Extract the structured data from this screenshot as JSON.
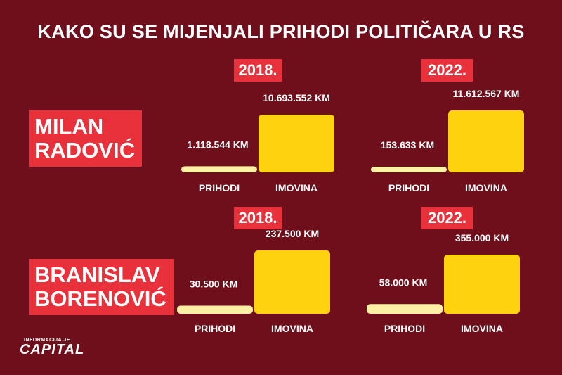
{
  "title": "KAKO SU SE MIJENJALI PRIHODI POLITIČARA U RS",
  "politicians": [
    {
      "name_line1": "MILAN",
      "name_line2": "RADOVIĆ"
    },
    {
      "name_line1": "BRANISLAV",
      "name_line2": "BORENOVIĆ"
    }
  ],
  "years": [
    "2018.",
    "2018.",
    "2022.",
    "2022."
  ],
  "logo": {
    "small": "INFORMACIJA JE",
    "big": "CAPITAL"
  },
  "colors": {
    "background": "#6e0f1b",
    "tag": "#e8313a",
    "prihodi_bar": "#fff0a6",
    "imovina_bar": "#ffd20f"
  },
  "chart_data": [
    {
      "type": "bar",
      "panel": "MILAN RADOVIĆ 2018.",
      "categories": [
        "PRIHODI",
        "IMOVINA"
      ],
      "values": [
        1118544,
        10693552
      ],
      "labels": [
        "1.118.544 KM",
        "10.693.552 KM"
      ]
    },
    {
      "type": "bar",
      "panel": "MILAN RADOVIĆ 2022.",
      "categories": [
        "PRIHODI",
        "IMOVINA"
      ],
      "values": [
        153633,
        11612567
      ],
      "labels": [
        "153.633 KM",
        "11.612.567 KM"
      ]
    },
    {
      "type": "bar",
      "panel": "BRANISLAV BORENOVIĆ 2018.",
      "categories": [
        "PRIHODI",
        "IMOVINA"
      ],
      "values": [
        30500,
        237500
      ],
      "labels": [
        "30.500 KM",
        "237.500 KM"
      ]
    },
    {
      "type": "bar",
      "panel": "BRANISLAV BORENOVIĆ 2022.",
      "categories": [
        "PRIHODI",
        "IMOVINA"
      ],
      "values": [
        58000,
        355000
      ],
      "labels": [
        "58.000 KM",
        "355.000 KM"
      ]
    }
  ]
}
